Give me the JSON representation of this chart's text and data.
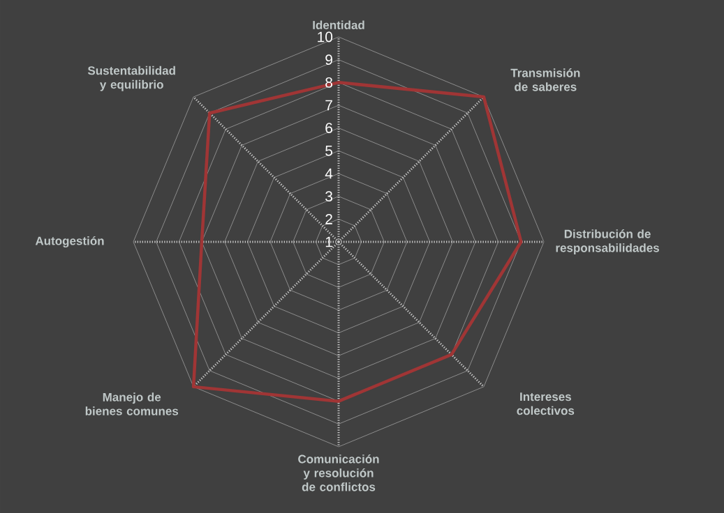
{
  "chart_data": {
    "type": "radar",
    "categories": [
      "Identidad",
      "Transmisión de saberes",
      "Distribución de responsabilidades",
      "Intereses colectivos",
      "Comunicación y resolución de conflictos",
      "Manejo de bienes comunes",
      "Autogestión",
      "Sustentabilidad y equilibrio"
    ],
    "series": [
      {
        "color": "#a03535",
        "values": [
          8,
          10,
          9,
          8,
          8,
          10,
          7,
          9
        ]
      }
    ],
    "ylim": [
      1,
      10
    ],
    "yticks": [
      1,
      2,
      3,
      4,
      5,
      6,
      7,
      8,
      9,
      10
    ],
    "grid": true
  }
}
